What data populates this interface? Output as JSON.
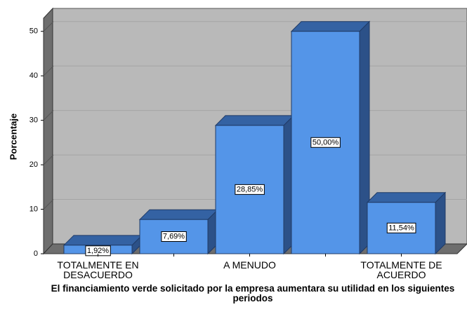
{
  "chart_data": {
    "type": "bar3d",
    "x_label": "El financiamiento verde solicitado por la empresa aumentara su utilidad en los siguientes periodos",
    "y_label": "Porcentaje",
    "categories": [
      "TOTALMENTE EN DESACUERDO",
      null,
      "A MENUDO",
      null,
      "TOTALMENTE DE ACUERDO"
    ],
    "values": [
      1.92,
      7.69,
      28.85,
      50.0,
      11.54
    ],
    "value_labels": [
      "1,92%",
      "7,69%",
      "28,85%",
      "50,00%",
      "11,54%"
    ],
    "color": "#5495e8",
    "ylim": [
      0,
      55
    ],
    "yticks": [
      0,
      10,
      20,
      30,
      40,
      50
    ],
    "grid": true
  }
}
